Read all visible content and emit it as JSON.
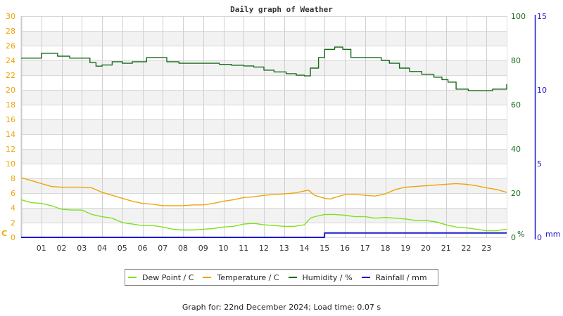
{
  "chart_data": {
    "type": "line",
    "title": "Daily graph of Weather",
    "xlabel": "",
    "x_ticks": [
      "01",
      "02",
      "03",
      "04",
      "05",
      "06",
      "07",
      "08",
      "09",
      "10",
      "11",
      "12",
      "13",
      "14",
      "15",
      "16",
      "17",
      "18",
      "19",
      "20",
      "21",
      "22",
      "23"
    ],
    "x_range": [
      0,
      24
    ],
    "axes": {
      "left": {
        "unit": "C",
        "ticks": [
          0,
          2,
          4,
          6,
          8,
          10,
          12,
          14,
          16,
          18,
          20,
          22,
          24,
          26,
          28,
          30
        ],
        "range": [
          0,
          30
        ],
        "color": "#f0a30a"
      },
      "right_humidity": {
        "unit": "%",
        "ticks": [
          0,
          20,
          40,
          60,
          80,
          100
        ],
        "range": [
          0,
          100
        ],
        "color": "#1a6b1a"
      },
      "right_rainfall": {
        "unit": "mm",
        "ticks": [
          0,
          5,
          10,
          15
        ],
        "range": [
          0,
          15
        ],
        "color": "#1a1acc"
      }
    },
    "grid": true,
    "legend_position": "bottom",
    "series": [
      {
        "name": "Dew Point / C",
        "color": "#80e020",
        "axis": "left",
        "x": [
          0,
          0.5,
          1,
          1.5,
          2,
          2.5,
          3,
          3.5,
          4,
          4.5,
          5,
          5.5,
          6,
          6.5,
          7,
          7.5,
          8,
          8.5,
          9,
          9.5,
          10,
          10.5,
          11,
          11.5,
          12,
          12.5,
          13,
          13.5,
          14,
          14.3,
          14.5,
          15,
          15.5,
          16,
          16.5,
          17,
          17.5,
          18,
          18.5,
          19,
          19.5,
          20,
          20.5,
          21,
          21.5,
          22,
          22.5,
          23,
          23.5,
          24
        ],
        "values": [
          5.1,
          4.7,
          4.6,
          4.3,
          3.8,
          3.7,
          3.7,
          3.1,
          2.8,
          2.6,
          2.0,
          1.8,
          1.6,
          1.6,
          1.4,
          1.1,
          1.0,
          1.0,
          1.1,
          1.2,
          1.4,
          1.5,
          1.8,
          1.9,
          1.7,
          1.6,
          1.5,
          1.5,
          1.7,
          2.6,
          2.8,
          3.1,
          3.1,
          3.0,
          2.8,
          2.8,
          2.6,
          2.7,
          2.6,
          2.5,
          2.3,
          2.3,
          2.1,
          1.7,
          1.4,
          1.3,
          1.1,
          0.9,
          0.9,
          1.1
        ]
      },
      {
        "name": "Temperature / C",
        "color": "#f0a30a",
        "axis": "left",
        "x": [
          0,
          0.5,
          1,
          1.5,
          2,
          2.5,
          3,
          3.5,
          4,
          4.5,
          5,
          5.5,
          6,
          6.5,
          7,
          7.5,
          8,
          8.5,
          9,
          9.5,
          10,
          10.5,
          11,
          11.5,
          12,
          12.5,
          13,
          13.5,
          14,
          14.2,
          14.5,
          15,
          15.3,
          15.5,
          16,
          16.5,
          17,
          17.5,
          18,
          18.5,
          19,
          19.5,
          20,
          20.5,
          21,
          21.5,
          22,
          22.5,
          23,
          23.5,
          24
        ],
        "values": [
          8.1,
          7.7,
          7.3,
          6.9,
          6.8,
          6.8,
          6.8,
          6.7,
          6.1,
          5.7,
          5.3,
          4.9,
          4.6,
          4.5,
          4.3,
          4.3,
          4.3,
          4.4,
          4.4,
          4.6,
          4.9,
          5.1,
          5.4,
          5.5,
          5.7,
          5.8,
          5.9,
          6.0,
          6.3,
          6.4,
          5.7,
          5.3,
          5.2,
          5.4,
          5.8,
          5.8,
          5.7,
          5.6,
          5.9,
          6.5,
          6.8,
          6.9,
          7.0,
          7.1,
          7.2,
          7.3,
          7.2,
          7.0,
          6.7,
          6.5,
          6.1
        ]
      },
      {
        "name": "Humidity / %",
        "color": "#1a6b1a",
        "axis": "right_humidity",
        "x": [
          0,
          0.9,
          1.0,
          1.8,
          2.4,
          2.9,
          3.4,
          3.7,
          4.0,
          4.5,
          5.0,
          5.5,
          6.2,
          6.8,
          7.2,
          7.8,
          8.5,
          9.3,
          9.8,
          10.4,
          11.0,
          11.5,
          12.0,
          12.5,
          13.1,
          13.6,
          14.0,
          14.3,
          14.7,
          15.0,
          15.5,
          15.9,
          16.3,
          17.0,
          17.3,
          17.8,
          18.2,
          18.7,
          19.2,
          19.8,
          20.4,
          20.8,
          21.1,
          21.5,
          22.1,
          22.8,
          23.3,
          23.6,
          24
        ],
        "values": [
          81.0,
          81.0,
          83.2,
          81.9,
          81.0,
          81.0,
          79.0,
          77.4,
          77.9,
          79.4,
          78.7,
          79.4,
          81.3,
          81.3,
          79.4,
          78.7,
          78.7,
          78.7,
          78.2,
          77.8,
          77.5,
          77.0,
          75.6,
          74.8,
          74.0,
          73.3,
          73.0,
          76.5,
          81.3,
          85.0,
          86.0,
          85.0,
          81.3,
          81.3,
          81.3,
          80.0,
          78.7,
          76.5,
          75.0,
          73.7,
          72.4,
          71.3,
          70.2,
          67.0,
          66.3,
          66.3,
          67.0,
          67.0,
          69.2
        ]
      },
      {
        "name": "Rainfall / mm",
        "color": "#1a1acc",
        "axis": "right_rainfall",
        "x": [
          0,
          14.99,
          15.0,
          24
        ],
        "values": [
          0,
          0,
          0.3,
          0.3
        ]
      }
    ]
  },
  "legend": {
    "items": [
      {
        "label": "Dew Point / C",
        "color": "#80e020"
      },
      {
        "label": "Temperature / C",
        "color": "#f0a30a"
      },
      {
        "label": "Humidity / %",
        "color": "#1a6b1a"
      },
      {
        "label": "Rainfall / mm",
        "color": "#1a1acc"
      }
    ]
  },
  "footer": {
    "text": "Graph for: 22nd December 2024; Load time: 0.07 s"
  }
}
